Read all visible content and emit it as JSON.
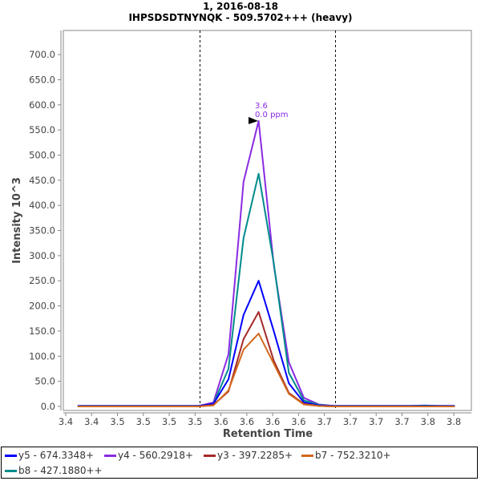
{
  "chart_data": {
    "type": "line",
    "title": "1, 2016-08-18",
    "subtitle": "IHPSDSDTNYNQK - 509.5702+++ (heavy)",
    "xlabel": "Retention Time",
    "ylabel": "Intensity 10^3",
    "xlim": [
      3.4227,
      3.817
    ],
    "ylim": [
      -8,
      748
    ],
    "x_ticks": [
      3.425,
      3.45,
      3.475,
      3.5,
      3.525,
      3.55,
      3.575,
      3.6,
      3.625,
      3.65,
      3.675,
      3.7,
      3.725,
      3.75,
      3.775,
      3.8
    ],
    "x_tick_labels": [
      "3.4",
      "3.4",
      "3.5",
      "3.5",
      "3.5",
      "3.5",
      "3.6",
      "3.6",
      "3.6",
      "3.6",
      "3.7",
      "3.7",
      "3.7",
      "3.7",
      "3.8",
      "3.8"
    ],
    "y_ticks": [
      0,
      50,
      100,
      150,
      200,
      250,
      300,
      350,
      400,
      450,
      500,
      550,
      600,
      650,
      700
    ],
    "y_tick_labels": [
      "0.0",
      "50.0",
      "100.0",
      "150.0",
      "200.0",
      "250.0",
      "300.0",
      "350.0",
      "400.0",
      "450.0",
      "500.0",
      "550.0",
      "600.0",
      "650.0",
      "700.0"
    ],
    "x_start": 3.4366,
    "x_step": 0.01457,
    "integration_bounds": [
      3.5543,
      3.6853
    ],
    "peak_annotation": {
      "x": 3.6125,
      "y": 568,
      "rt_label": "3.6",
      "ppm_label": "0.0 ppm",
      "color": "#8a2be2"
    },
    "series": [
      {
        "name": "y5 - 674.3348+",
        "color": "#0000ff",
        "values": [
          1,
          1,
          1,
          1,
          1,
          1,
          1,
          1,
          1,
          5,
          54,
          182,
          250,
          150,
          46,
          8,
          2,
          1,
          1,
          1,
          1,
          1,
          1,
          1,
          1,
          1
        ]
      },
      {
        "name": "y4 - 560.2918+",
        "color": "#8a2be2",
        "values": [
          1,
          1,
          1,
          1,
          1,
          1,
          1,
          1,
          1,
          8,
          104,
          447,
          568,
          282,
          88,
          17,
          4,
          1,
          1,
          1,
          1,
          1,
          1,
          1,
          1,
          1
        ]
      },
      {
        "name": "y3 - 397.2285+",
        "color": "#a52a2a",
        "values": [
          0,
          0,
          0,
          0,
          0,
          0,
          0,
          0,
          0,
          3,
          30,
          134,
          188,
          91,
          27,
          5,
          1,
          0,
          0,
          0,
          0,
          0,
          0,
          0,
          0,
          0
        ]
      },
      {
        "name": "b7 - 752.3210+",
        "color": "#d2691e",
        "values": [
          0,
          0,
          0,
          0,
          0,
          0,
          0,
          0,
          0,
          2,
          32,
          113,
          145,
          85,
          25,
          4,
          1,
          0,
          0,
          0,
          0,
          0,
          0,
          0,
          0,
          0
        ]
      },
      {
        "name": "b8 - 427.1880++",
        "color": "#008b8b",
        "values": [
          1,
          1,
          1,
          1,
          1,
          1,
          1,
          1,
          1,
          5,
          75,
          335,
          463,
          285,
          67,
          12,
          3,
          1,
          1,
          1,
          1,
          1,
          1,
          2,
          1,
          1
        ]
      }
    ]
  }
}
